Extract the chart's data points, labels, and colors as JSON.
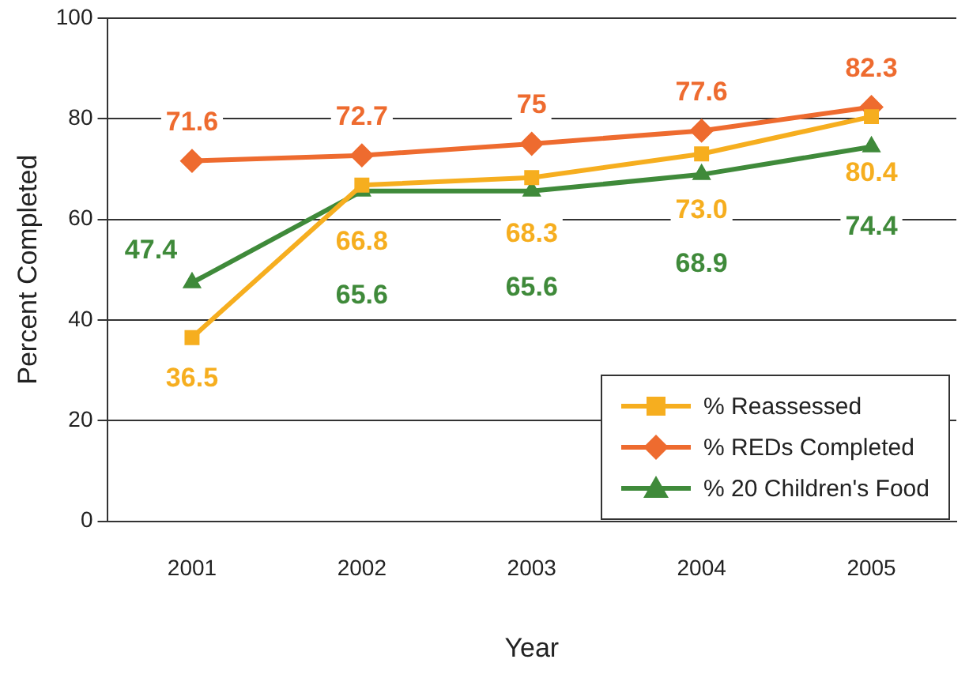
{
  "chart_data": {
    "type": "line",
    "xlabel": "Year",
    "ylabel": "Percent Completed",
    "categories": [
      "2001",
      "2002",
      "2003",
      "2004",
      "2005"
    ],
    "ylim": [
      0,
      100
    ],
    "yticks": [
      0,
      20,
      40,
      60,
      80,
      100
    ],
    "grid": "y",
    "legend": "bottom right",
    "series": [
      {
        "name": "% Reassessed",
        "color": "#f6ae1f",
        "marker": "square",
        "values": [
          36.5,
          66.8,
          68.3,
          73.0,
          80.4
        ],
        "value_labels": [
          "36.5",
          "66.8",
          "68.3",
          "73.0",
          "80.4"
        ]
      },
      {
        "name": "% REDs Completed",
        "color": "#ee6b2f",
        "marker": "diamond",
        "values": [
          71.6,
          72.7,
          75,
          77.6,
          82.3
        ],
        "value_labels": [
          "71.6",
          "72.7",
          "75",
          "77.6",
          "82.3"
        ]
      },
      {
        "name": "% 20 Children's Food",
        "color": "#3f8a3a",
        "marker": "triangle",
        "values": [
          47.4,
          65.6,
          65.6,
          68.9,
          74.4
        ],
        "value_labels": [
          "47.4",
          "65.6",
          "65.6",
          "68.9",
          "74.4"
        ]
      }
    ]
  }
}
